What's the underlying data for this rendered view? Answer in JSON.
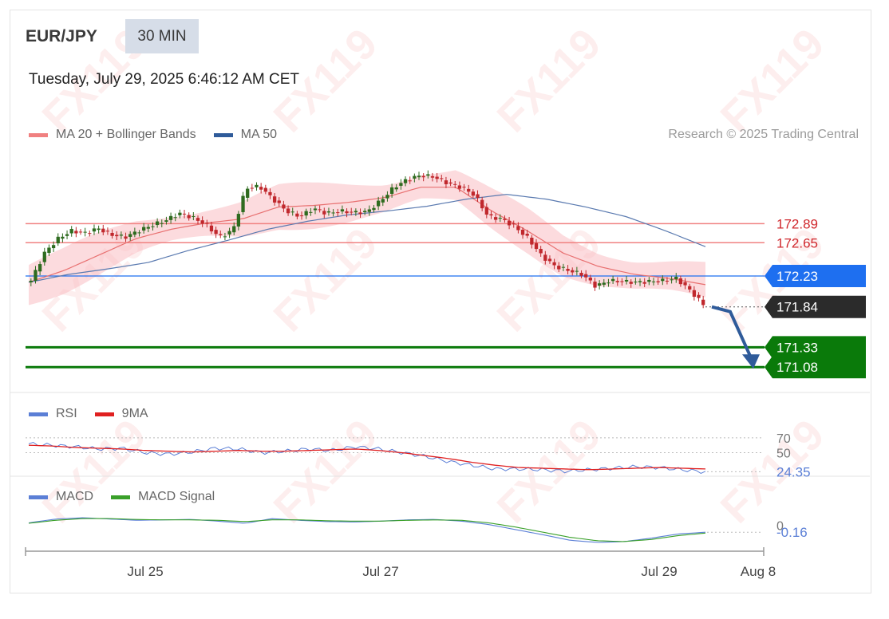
{
  "header": {
    "pair": "EUR/JPY",
    "timeframe": "30 MIN",
    "timestamp": "Tuesday, July 29, 2025 6:46:12 AM CET",
    "credit": "Research © 2025 Trading Central",
    "watermark": "FX119"
  },
  "legends": {
    "price": [
      {
        "label": "MA 20 + Bollinger Bands",
        "color": "#f08080"
      },
      {
        "label": "MA 50",
        "color": "#2f5b9a"
      }
    ],
    "rsi": [
      {
        "label": "RSI",
        "color": "#5b7fd6"
      },
      {
        "label": "9MA",
        "color": "#e02020"
      }
    ],
    "macd": [
      {
        "label": "MACD",
        "color": "#5b7fd6"
      },
      {
        "label": "MACD Signal",
        "color": "#3aa02a"
      }
    ]
  },
  "colors": {
    "up": "#2e6b1f",
    "down": "#c0282d",
    "bollinger": "rgba(250,190,195,0.55)",
    "ma20": "#e87070",
    "ma50": "#5a7ab0",
    "resistance": "#f08080",
    "pivot": "#1e6ff0",
    "current": "#2b2b2b",
    "support": "#0a7a0a",
    "arrow": "#2f5b9a"
  },
  "chart_data": [
    {
      "type": "line",
      "name": "price",
      "ylim": [
        170.8,
        173.75
      ],
      "levels": [
        {
          "value": 172.89,
          "label": "172.89",
          "role": "resistance"
        },
        {
          "value": 172.65,
          "label": "172.65",
          "role": "resistance"
        },
        {
          "value": 172.23,
          "label": "172.23",
          "role": "pivot"
        },
        {
          "value": 171.84,
          "label": "171.84",
          "role": "current"
        },
        {
          "value": 171.33,
          "label": "171.33",
          "role": "support"
        },
        {
          "value": 171.08,
          "label": "171.08",
          "role": "support"
        }
      ],
      "forecast": {
        "from": 171.84,
        "to": 171.08,
        "direction": "down"
      },
      "close_path": [
        172.17,
        172.52,
        172.7,
        172.8,
        172.77,
        172.83,
        172.75,
        172.72,
        172.8,
        172.87,
        172.93,
        173.02,
        172.97,
        172.88,
        172.72,
        172.8,
        173.34,
        173.36,
        173.2,
        173.05,
        172.98,
        173.08,
        173.02,
        173.05,
        173.03,
        173.04,
        173.18,
        173.35,
        173.45,
        173.5,
        173.48,
        173.4,
        173.35,
        173.25,
        172.98,
        172.95,
        172.85,
        172.7,
        172.48,
        172.35,
        172.3,
        172.25,
        172.1,
        172.17,
        172.16,
        172.15,
        172.16,
        172.17,
        172.2,
        172.05,
        171.87
      ],
      "ma20_path": [
        172.15,
        172.3,
        172.5,
        172.7,
        172.82,
        172.9,
        172.95,
        173.1,
        173.12,
        173.16,
        173.22,
        173.35,
        173.35,
        173.05,
        172.8,
        172.52,
        172.35,
        172.25,
        172.2,
        172.12
      ],
      "ma50_path": [
        172.15,
        172.25,
        172.32,
        172.4,
        172.55,
        172.68,
        172.82,
        172.92,
        173.0,
        173.05,
        173.11,
        173.2,
        173.26,
        173.2,
        173.1,
        172.98,
        172.8,
        172.6
      ],
      "x_ticks": [
        "Jul 25",
        "Jul 27",
        "Jul 29",
        "Aug 8"
      ]
    },
    {
      "type": "line",
      "name": "rsi",
      "ylim": [
        15,
        85
      ],
      "value_label": "24.35",
      "levels": [
        {
          "value": 70,
          "label": "70"
        },
        {
          "value": 50,
          "label": "50"
        }
      ],
      "rsi_path": [
        62,
        60,
        58,
        55,
        56,
        50,
        48,
        51,
        56,
        55,
        50,
        52,
        55,
        53,
        58,
        55,
        50,
        45,
        38,
        33,
        28,
        28,
        27,
        25,
        27,
        29,
        31,
        30,
        27,
        24
      ],
      "ma_path": [
        60,
        59,
        57,
        56,
        55,
        53,
        52,
        51,
        52,
        53,
        52,
        52,
        53,
        54,
        55,
        53,
        50,
        46,
        42,
        37,
        33,
        30,
        29,
        28,
        27,
        28,
        29,
        30,
        29,
        28
      ]
    },
    {
      "type": "line",
      "name": "macd",
      "ylim": [
        -0.55,
        0.35
      ],
      "value_label": "-0.16",
      "levels": [
        {
          "value": 0,
          "label": "0"
        }
      ],
      "macd_path": [
        0.06,
        0.15,
        0.18,
        0.15,
        0.12,
        0.13,
        0.14,
        0.1,
        0.05,
        0.16,
        0.12,
        0.09,
        0.08,
        0.1,
        0.13,
        0.14,
        0.1,
        0.02,
        -0.1,
        -0.22,
        -0.35,
        -0.4,
        -0.38,
        -0.3,
        -0.2,
        -0.16
      ],
      "signal_path": [
        0.05,
        0.12,
        0.16,
        0.16,
        0.14,
        0.13,
        0.13,
        0.12,
        0.09,
        0.13,
        0.13,
        0.11,
        0.1,
        0.1,
        0.12,
        0.13,
        0.12,
        0.06,
        -0.04,
        -0.16,
        -0.28,
        -0.36,
        -0.38,
        -0.33,
        -0.24,
        -0.18
      ]
    }
  ]
}
